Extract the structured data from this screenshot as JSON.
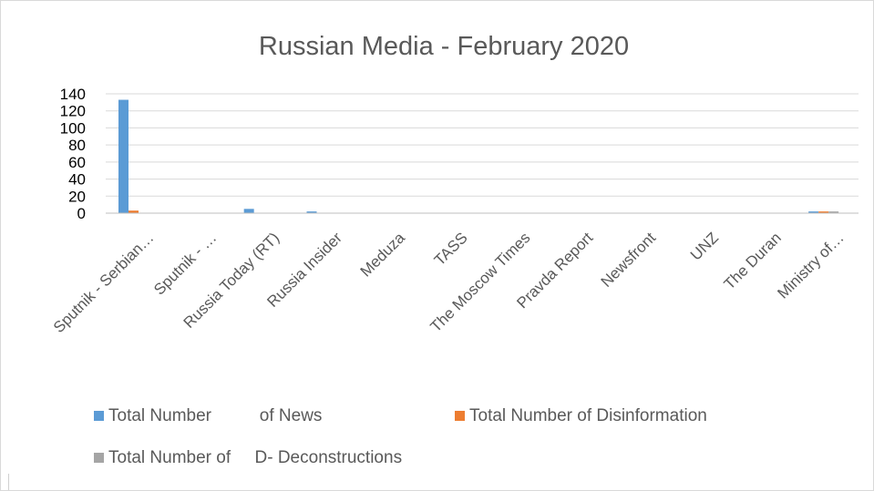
{
  "chart_data": {
    "type": "bar",
    "title": "Russian Media - February 2020",
    "xlabel": "",
    "ylabel": "",
    "ylim": [
      0,
      140
    ],
    "yticks": [
      "0",
      "20",
      "40",
      "60",
      "80",
      "100",
      "120",
      "140"
    ],
    "categories": [
      "Sputnik - Serbian…",
      "Sputnik - …",
      "Russia Today (RT)",
      "Russia Insider",
      "Meduza",
      "TASS",
      "The Moscow Times",
      "Pravda Report",
      "Newsfront",
      "UNZ",
      "The Duran",
      "Ministry of…"
    ],
    "series": [
      {
        "name": "Total Number          of News",
        "color": "#5b9bd5",
        "values": [
          133,
          0,
          5,
          2,
          0,
          0,
          0,
          0,
          0,
          0,
          0,
          2
        ]
      },
      {
        "name": "Total Number of Disinformation",
        "color": "#ed7d31",
        "values": [
          3,
          0,
          0,
          0,
          0,
          0,
          0,
          0,
          0,
          0,
          0,
          2
        ]
      },
      {
        "name": "Total Number of     D- Deconstructions",
        "color": "#a5a5a5",
        "values": [
          0,
          0,
          0,
          0,
          0,
          0,
          0,
          0,
          0,
          0,
          0,
          2
        ]
      }
    ],
    "grid": true,
    "legend_position": "bottom"
  }
}
